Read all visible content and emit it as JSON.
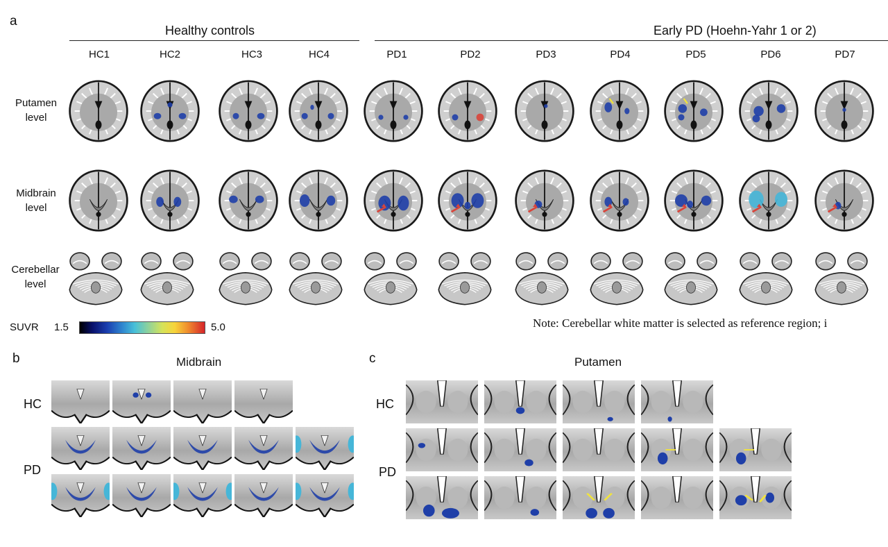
{
  "panel_a": {
    "letter": "a",
    "group_hc": "Healthy controls",
    "group_pd": "Early PD (Hoehn-Yahr 1 or 2)",
    "columns": [
      "HC1",
      "HC2",
      "HC3",
      "HC4",
      "PD1",
      "PD2",
      "PD3",
      "PD4",
      "PD5",
      "PD6",
      "PD7"
    ],
    "rows": [
      {
        "line1": "Putamen",
        "line2": "level"
      },
      {
        "line1": "Midbrain",
        "line2": "level"
      },
      {
        "line1": "Cerebellar",
        "line2": "level"
      }
    ],
    "scale": {
      "label": "SUVR",
      "min": "1.5",
      "max": "5.0"
    },
    "note": "Note: Cerebellar white matter is selected as reference region; i"
  },
  "panel_b": {
    "letter": "b",
    "title": "Midbrain",
    "row_hc": "HC",
    "row_pd": "PD"
  },
  "panel_c": {
    "letter": "c",
    "title": "Putamen",
    "row_hc": "HC",
    "row_pd": "PD"
  },
  "colors": {
    "uptake_blue": "#1f3fa8",
    "uptake_cyan": "#46b6d8",
    "arrow_red": "#d9443a",
    "arrow_yellow": "#f2e43a"
  }
}
